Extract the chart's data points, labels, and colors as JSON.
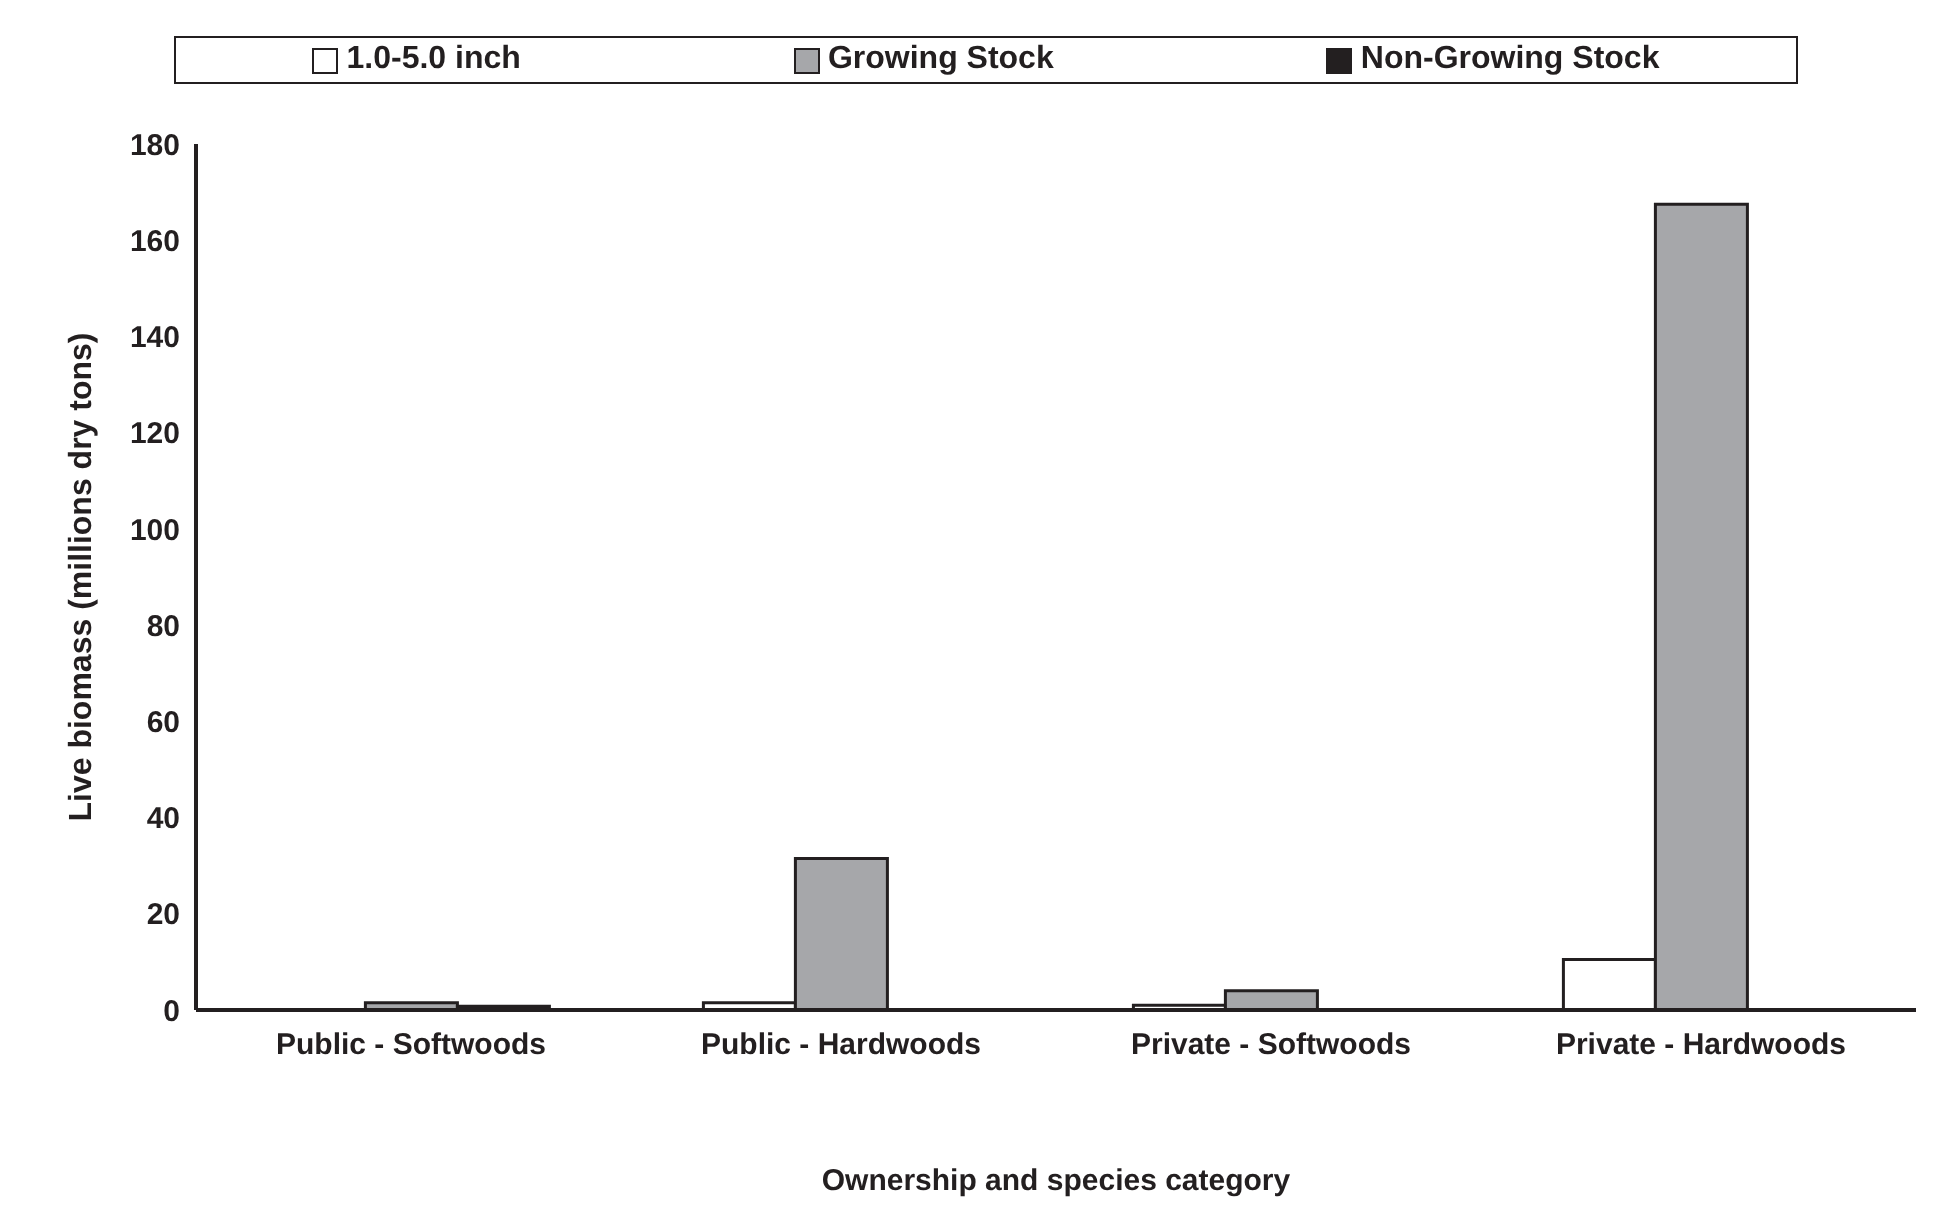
{
  "chart_data": {
    "type": "bar",
    "xlabel": "Ownership and species category",
    "ylabel": "Live biomass (millions dry tons)",
    "categories": [
      "Public - Softwoods",
      "Public - Hardwoods",
      "Private - Softwoods",
      "Private - Hardwoods"
    ],
    "series": [
      {
        "name": "1.0-5.0 inch",
        "color": "#ffffff",
        "values": [
          null,
          1.5,
          1,
          10.5
        ]
      },
      {
        "name": "Growing Stock",
        "color": "#a6a7aa",
        "values": [
          1.5,
          31.5,
          4,
          167.5
        ]
      },
      {
        "name": "Non-Growing Stock",
        "color": "#231f20",
        "values": [
          0.8,
          0,
          0,
          0
        ]
      }
    ],
    "ylim": [
      0,
      180
    ],
    "yticks": [
      0,
      20,
      40,
      60,
      80,
      100,
      120,
      140,
      160,
      180
    ],
    "grid": false,
    "legend": "top"
  }
}
